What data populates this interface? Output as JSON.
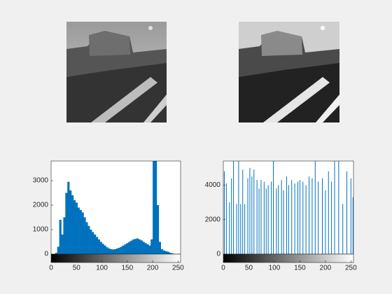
{
  "chart_data": [
    {
      "type": "histogram",
      "bins": [
        0,
        4,
        8,
        12,
        16,
        20,
        24,
        28,
        32,
        36,
        40,
        44,
        48,
        52,
        56,
        60,
        64,
        68,
        72,
        76,
        80,
        84,
        88,
        92,
        96,
        100,
        104,
        108,
        112,
        116,
        120,
        124,
        128,
        132,
        136,
        140,
        144,
        148,
        152,
        156,
        160,
        164,
        168,
        172,
        176,
        180,
        184,
        188,
        192,
        196,
        200,
        204,
        208,
        212,
        216,
        220,
        224,
        228,
        232,
        236,
        240,
        244,
        248,
        252,
        256
      ],
      "values": [
        0,
        0,
        50,
        300,
        1400,
        800,
        1500,
        2500,
        2950,
        2600,
        2400,
        2200,
        2100,
        1900,
        1800,
        1700,
        1500,
        1300,
        1150,
        1000,
        900,
        800,
        700,
        600,
        500,
        420,
        350,
        280,
        230,
        200,
        190,
        200,
        230,
        260,
        300,
        350,
        400,
        450,
        500,
        550,
        600,
        620,
        640,
        600,
        560,
        500,
        450,
        400,
        350,
        600,
        3800,
        3800,
        2000,
        500,
        200,
        150,
        120,
        100,
        60,
        30,
        10,
        0,
        0,
        0
      ],
      "color": "#0072bd",
      "xlim": [
        0,
        255
      ],
      "xticks": [
        0,
        50,
        100,
        150,
        200,
        250
      ],
      "ylim": [
        0,
        3800
      ],
      "yticks": [
        0,
        1000,
        2000,
        3000
      ]
    },
    {
      "type": "stem",
      "x": [
        2,
        6,
        12,
        16,
        20,
        26,
        30,
        34,
        38,
        42,
        48,
        52,
        56,
        60,
        66,
        70,
        74,
        80,
        84,
        88,
        94,
        98,
        104,
        108,
        114,
        118,
        124,
        128,
        134,
        140,
        146,
        150,
        156,
        162,
        168,
        174,
        180,
        186,
        194,
        200,
        206,
        212,
        218,
        226,
        234,
        242,
        250,
        254
      ],
      "values": [
        4800,
        4100,
        3000,
        4400,
        5400,
        2900,
        5400,
        2900,
        4900,
        2900,
        4400,
        5000,
        4500,
        4900,
        4300,
        3800,
        4300,
        4200,
        3800,
        4000,
        4200,
        5400,
        3800,
        4000,
        4300,
        3700,
        4500,
        4000,
        4300,
        4100,
        4200,
        4300,
        4200,
        4000,
        4500,
        4400,
        5400,
        4200,
        4400,
        3700,
        4800,
        4200,
        5400,
        5400,
        2900,
        4800,
        4400,
        3300
      ],
      "color": "#0072bd",
      "xlim": [
        0,
        255
      ],
      "xticks": [
        0,
        50,
        100,
        150,
        200,
        250
      ],
      "ylim": [
        0,
        5400
      ],
      "yticks": [
        0,
        2000,
        4000
      ]
    }
  ]
}
